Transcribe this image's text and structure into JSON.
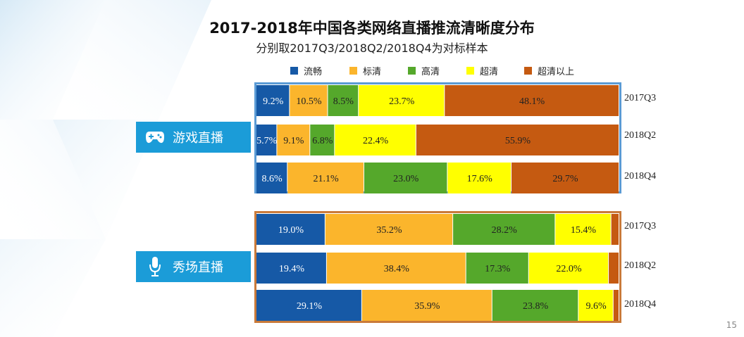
{
  "title": "2017-2018年中国各类网络直播推流清晰度分布",
  "subtitle": "分别取2017Q3/2018Q2/2018Q4为对标样本",
  "page_number": "15",
  "colors": {
    "流畅": "#1659a6",
    "标清": "#fbb52c",
    "高清": "#55a82b",
    "超清": "#ffff00",
    "超清以上": "#c55a11",
    "game_border": "#5b9bd5",
    "show_border": "#c97a3a",
    "group_label_bg": "#1b9cd8"
  },
  "legend": [
    "流畅",
    "标清",
    "高清",
    "超清",
    "超清以上"
  ],
  "group_icons": {
    "游戏直播": "gamepad-icon",
    "秀场直播": "microphone-icon"
  },
  "chart_data": {
    "type": "bar",
    "orientation": "horizontal",
    "stacked": true,
    "title": "2017-2018年中国各类网络直播推流清晰度分布",
    "subtitle": "分别取2017Q3/2018Q2/2018Q4为对标样本",
    "legend_position": "top",
    "series_names": [
      "流畅",
      "标清",
      "高清",
      "超清",
      "超清以上"
    ],
    "groups": [
      {
        "name": "游戏直播",
        "rows": [
          {
            "period": "2017Q3",
            "values": [
              9.2,
              10.5,
              8.5,
              23.7,
              48.1
            ],
            "labels": [
              "9.2%",
              "10.5%",
              "8.5%",
              "23.7%",
              "48.1%"
            ]
          },
          {
            "period": "2018Q2",
            "values": [
              5.7,
              9.1,
              6.8,
              22.4,
              55.9
            ],
            "labels": [
              "5.7%",
              "9.1%",
              "6.8%",
              "22.4%",
              "55.9%"
            ]
          },
          {
            "period": "2018Q4",
            "values": [
              8.6,
              21.1,
              23.0,
              17.6,
              29.7
            ],
            "labels": [
              "8.6%",
              "21.1%",
              "23.0%",
              "17.6%",
              "29.7%"
            ]
          }
        ]
      },
      {
        "name": "秀场直播",
        "rows": [
          {
            "period": "2017Q3",
            "values": [
              19.0,
              35.2,
              28.2,
              15.4,
              2.2
            ],
            "labels": [
              "19.0%",
              "35.2%",
              "28.2%",
              "15.4%",
              ""
            ]
          },
          {
            "period": "2018Q2",
            "values": [
              19.4,
              38.4,
              17.3,
              22.0,
              2.9
            ],
            "labels": [
              "19.4%",
              "38.4%",
              "17.3%",
              "22.0%",
              ""
            ]
          },
          {
            "period": "2018Q4",
            "values": [
              29.1,
              35.9,
              23.8,
              9.6,
              1.6
            ],
            "labels": [
              "29.1%",
              "35.9%",
              "23.8%",
              "9.6%",
              ""
            ]
          }
        ]
      }
    ]
  }
}
